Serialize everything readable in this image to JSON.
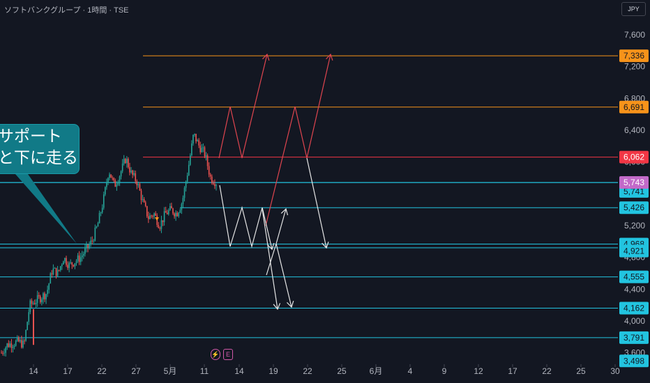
{
  "window": {
    "title": "ソフトバンクグループ · 1時間 · TSE",
    "currency": "JPY"
  },
  "callout": {
    "line1": "サポート",
    "line2": "と下に走る"
  },
  "events": [
    {
      "icon": "dividend-icon",
      "label": "⚡"
    },
    {
      "icon": "earnings-icon",
      "label": "E"
    }
  ],
  "colors": {
    "background": "#131722",
    "up": "#26a69a",
    "down": "#ef5350",
    "cyan_line": "#22c4e0",
    "orange_line": "#f7931a",
    "red_line": "#f23645",
    "current_price": "#c26ac9"
  },
  "chart_data": {
    "type": "candlestick",
    "title": "ソフトバンクグループ · 1時間 · TSE",
    "price_axis": {
      "ticks": [
        "7,600",
        "7,200",
        "6,800",
        "6,400",
        "6,000",
        "5,600",
        "5,200",
        "4,800",
        "4,400",
        "4,000",
        "3,600"
      ],
      "range": [
        3420,
        7800
      ]
    },
    "x_axis": {
      "labels": [
        "14",
        "17",
        "22",
        "27",
        "5月",
        "11",
        "14",
        "19",
        "22",
        "25",
        "6月",
        "4",
        "9",
        "12",
        "17",
        "22",
        "25",
        "30"
      ]
    },
    "horizontal_lines": [
      {
        "value": 7336,
        "label": "7,336",
        "color": "orange"
      },
      {
        "value": 6691,
        "label": "6,691",
        "color": "orange"
      },
      {
        "value": 6062,
        "label": "6,062",
        "color": "red"
      },
      {
        "value": 5741,
        "label": "5,741",
        "color": "cyan"
      },
      {
        "value": 5426,
        "label": "5,426",
        "color": "cyan"
      },
      {
        "value": 4968,
        "label": "4,968",
        "color": "cyan"
      },
      {
        "value": 4921,
        "label": "4,921",
        "color": "cyan"
      },
      {
        "value": 4555,
        "label": "4,555",
        "color": "cyan"
      },
      {
        "value": 4162,
        "label": "4,162",
        "color": "cyan"
      },
      {
        "value": 3791,
        "label": "3,791",
        "color": "cyan"
      }
    ],
    "current_price": {
      "value": 5743,
      "label": "5,743"
    },
    "extra_price_tag": {
      "value": 3498,
      "label": "3,498"
    },
    "approx_close_path": [
      3600,
      3700,
      3720,
      3740,
      3700,
      4200,
      4250,
      4300,
      4350,
      4650,
      4600,
      4800,
      4700,
      4750,
      4800,
      4900,
      5000,
      5200,
      5500,
      5900,
      5700,
      5850,
      6050,
      5850,
      5750,
      5500,
      5300,
      5350,
      5200,
      5350,
      5400,
      5350,
      5500,
      5900,
      6350,
      6200,
      6100,
      5800,
      5743
    ]
  }
}
